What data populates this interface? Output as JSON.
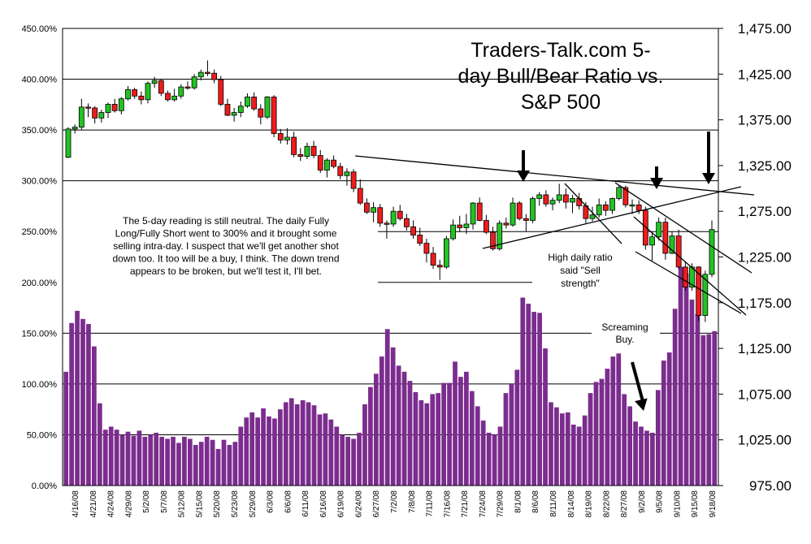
{
  "chart_data": {
    "type": "bar",
    "title_lines": [
      "Traders-Talk.com 5-",
      "day Bull/Bear Ratio vs.",
      "S&P 500"
    ],
    "left_axis": {
      "ylim": [
        0,
        450
      ],
      "ticks": [
        0,
        50,
        100,
        150,
        200,
        250,
        300,
        350,
        400,
        450
      ],
      "tick_labels": [
        "0.00%",
        "50.00%",
        "100.00%",
        "150.00%",
        "200.00%",
        "250.00%",
        "300.00%",
        "350.00%",
        "400.00%",
        "450.00%"
      ]
    },
    "right_axis": {
      "ylim": [
        975,
        1475
      ],
      "ticks": [
        975,
        1025,
        1075,
        1125,
        1175,
        1225,
        1275,
        1325,
        1375,
        1425,
        1475
      ],
      "tick_labels": [
        "975.00",
        "1,025.00",
        "1,075.00",
        "1,125.00",
        "1,175.00",
        "1,225.00",
        "1,275.00",
        "1,325.00",
        "1,375.00",
        "1,425.00",
        "1,475.00"
      ]
    },
    "x_labels": [
      "4/16/08",
      "4/21/08",
      "4/24/08",
      "4/29/08",
      "5/2/08",
      "5/7/08",
      "5/12/08",
      "5/15/08",
      "5/20/08",
      "5/23/08",
      "5/29/08",
      "6/3/08",
      "6/6/08",
      "6/11/08",
      "6/16/08",
      "6/19/08",
      "6/24/08",
      "6/27/08",
      "7/2/08",
      "7/8/08",
      "7/11/08",
      "7/16/08",
      "7/21/08",
      "7/24/08",
      "7/29/08",
      "8/1/08",
      "8/6/08",
      "8/11/08",
      "8/14/08",
      "8/19/08",
      "8/22/08",
      "8/27/08",
      "9/2/08",
      "9/5/08",
      "9/10/08",
      "9/15/08",
      "9/18/08"
    ],
    "series": [
      {
        "name": "5-day Bull/Bear Ratio",
        "type": "bar",
        "axis": "left",
        "color": "#7b2d8e",
        "values": [
          112,
          160,
          172,
          164,
          159,
          137,
          81,
          55,
          58,
          55,
          50,
          53,
          49,
          54,
          48,
          50,
          52,
          48,
          46,
          48,
          42,
          48,
          46,
          40,
          43,
          48,
          45,
          36,
          45,
          40,
          43,
          58,
          67,
          72,
          67,
          76,
          68,
          66,
          75,
          82,
          86,
          80,
          84,
          82,
          79,
          70,
          71,
          65,
          58,
          50,
          48,
          46,
          52,
          80,
          97,
          110,
          127,
          154,
          136,
          118,
          112,
          103,
          92,
          84,
          81,
          90,
          91,
          101,
          101,
          122,
          107,
          112,
          93,
          78,
          64,
          52,
          50,
          58,
          91,
          100,
          114,
          185,
          179,
          171,
          170,
          135,
          82,
          77,
          71,
          72,
          60,
          58,
          69,
          91,
          102,
          105,
          115,
          127,
          130,
          90,
          78,
          63,
          58,
          54,
          52,
          94,
          123,
          131,
          174,
          215,
          209,
          183,
          169,
          148,
          149,
          152
        ],
        "max_label": "215%"
      },
      {
        "name": "S&P 500",
        "type": "candlestick",
        "axis": "right",
        "ohlc_note": "open, high, low, close",
        "values": [
          [
            1334,
            1367,
            1333,
            1365
          ],
          [
            1365,
            1370,
            1360,
            1367
          ],
          [
            1367,
            1398,
            1364,
            1389
          ],
          [
            1389,
            1393,
            1378,
            1388
          ],
          [
            1388,
            1390,
            1371,
            1377
          ],
          [
            1377,
            1386,
            1372,
            1383
          ],
          [
            1383,
            1394,
            1377,
            1392
          ],
          [
            1392,
            1398,
            1383,
            1385
          ],
          [
            1385,
            1400,
            1381,
            1398
          ],
          [
            1398,
            1412,
            1396,
            1408
          ],
          [
            1408,
            1410,
            1398,
            1401
          ],
          [
            1401,
            1406,
            1392,
            1397
          ],
          [
            1397,
            1417,
            1393,
            1415
          ],
          [
            1415,
            1422,
            1410,
            1418
          ],
          [
            1418,
            1420,
            1401,
            1404
          ],
          [
            1404,
            1407,
            1395,
            1397
          ],
          [
            1397,
            1409,
            1395,
            1401
          ],
          [
            1401,
            1414,
            1398,
            1411
          ],
          [
            1411,
            1417,
            1408,
            1410
          ],
          [
            1410,
            1425,
            1408,
            1422
          ],
          [
            1422,
            1430,
            1418,
            1427
          ],
          [
            1427,
            1440,
            1423,
            1426
          ],
          [
            1426,
            1430,
            1415,
            1419
          ],
          [
            1419,
            1423,
            1390,
            1392
          ],
          [
            1392,
            1398,
            1379,
            1380
          ],
          [
            1380,
            1388,
            1373,
            1383
          ],
          [
            1383,
            1395,
            1378,
            1390
          ],
          [
            1390,
            1404,
            1388,
            1400
          ],
          [
            1400,
            1405,
            1385,
            1387
          ],
          [
            1387,
            1392,
            1370,
            1378
          ],
          [
            1378,
            1401,
            1376,
            1400
          ],
          [
            1400,
            1402,
            1356,
            1360
          ],
          [
            1360,
            1365,
            1349,
            1353
          ],
          [
            1353,
            1366,
            1348,
            1356
          ],
          [
            1356,
            1362,
            1334,
            1337
          ],
          [
            1337,
            1344,
            1330,
            1335
          ],
          [
            1335,
            1350,
            1332,
            1346
          ],
          [
            1346,
            1352,
            1333,
            1336
          ],
          [
            1336,
            1342,
            1317,
            1320
          ],
          [
            1320,
            1333,
            1312,
            1331
          ],
          [
            1331,
            1336,
            1322,
            1324
          ],
          [
            1324,
            1328,
            1310,
            1314
          ],
          [
            1314,
            1322,
            1303,
            1318
          ],
          [
            1318,
            1321,
            1296,
            1300
          ],
          [
            1300,
            1310,
            1282,
            1284
          ],
          [
            1284,
            1289,
            1272,
            1274
          ],
          [
            1274,
            1285,
            1263,
            1279
          ],
          [
            1279,
            1283,
            1258,
            1262
          ],
          [
            1262,
            1265,
            1245,
            1261
          ],
          [
            1261,
            1280,
            1258,
            1275
          ],
          [
            1275,
            1282,
            1265,
            1267
          ],
          [
            1267,
            1272,
            1254,
            1258
          ],
          [
            1258,
            1265,
            1245,
            1249
          ],
          [
            1249,
            1257,
            1237,
            1240
          ],
          [
            1240,
            1245,
            1219,
            1229
          ],
          [
            1229,
            1236,
            1212,
            1216
          ],
          [
            1216,
            1222,
            1200,
            1214
          ],
          [
            1214,
            1248,
            1212,
            1245
          ],
          [
            1245,
            1266,
            1243,
            1260
          ],
          [
            1260,
            1270,
            1252,
            1257
          ],
          [
            1257,
            1272,
            1250,
            1261
          ],
          [
            1261,
            1285,
            1255,
            1284
          ],
          [
            1284,
            1290,
            1264,
            1265
          ],
          [
            1265,
            1271,
            1250,
            1252
          ],
          [
            1252,
            1258,
            1232,
            1234
          ],
          [
            1234,
            1265,
            1232,
            1262
          ],
          [
            1262,
            1268,
            1256,
            1260
          ],
          [
            1260,
            1290,
            1258,
            1284
          ],
          [
            1284,
            1286,
            1265,
            1267
          ],
          [
            1267,
            1272,
            1253,
            1265
          ],
          [
            1265,
            1291,
            1262,
            1289
          ],
          [
            1289,
            1296,
            1281,
            1293
          ],
          [
            1293,
            1298,
            1280,
            1283
          ],
          [
            1283,
            1290,
            1276,
            1287
          ],
          [
            1287,
            1305,
            1284,
            1293
          ],
          [
            1293,
            1300,
            1278,
            1285
          ],
          [
            1285,
            1293,
            1273,
            1289
          ],
          [
            1289,
            1295,
            1277,
            1281
          ],
          [
            1281,
            1285,
            1262,
            1267
          ],
          [
            1267,
            1280,
            1264,
            1271
          ],
          [
            1271,
            1289,
            1268,
            1282
          ],
          [
            1282,
            1286,
            1270,
            1276
          ],
          [
            1276,
            1290,
            1272,
            1289
          ],
          [
            1289,
            1303,
            1287,
            1301
          ],
          [
            1301,
            1303,
            1279,
            1282
          ],
          [
            1282,
            1288,
            1272,
            1282
          ],
          [
            1282,
            1287,
            1272,
            1276
          ],
          [
            1276,
            1280,
            1233,
            1238
          ],
          [
            1238,
            1252,
            1221,
            1247
          ],
          [
            1247,
            1268,
            1243,
            1263
          ],
          [
            1263,
            1268,
            1222,
            1229
          ],
          [
            1229,
            1253,
            1228,
            1248
          ],
          [
            1248,
            1255,
            1212,
            1214
          ],
          [
            1214,
            1220,
            1188,
            1192
          ],
          [
            1192,
            1218,
            1188,
            1214
          ],
          [
            1214,
            1215,
            1155,
            1161
          ],
          [
            1161,
            1210,
            1154,
            1206
          ],
          [
            1206,
            1265,
            1203,
            1255
          ]
        ]
      }
    ],
    "trendlines_note": "hand-drawn trendlines and arrows on price chart",
    "annotations": {
      "commentary": [
        "The 5-day reading is still neutral. The daily Fully",
        "Long/Fully Short went to 300% and it brought some",
        "selling intra-day. I suspect that we'll get another shot",
        "down too. It too will be a buy, I think. The down trend",
        "appears to be broken, but we'll test it, I'll bet."
      ],
      "high_ratio": [
        "High daily ratio",
        "said \"Sell",
        "strength\""
      ],
      "screaming_buy": [
        "Screaming",
        "Buy."
      ]
    },
    "grid": true,
    "legend": "none"
  }
}
